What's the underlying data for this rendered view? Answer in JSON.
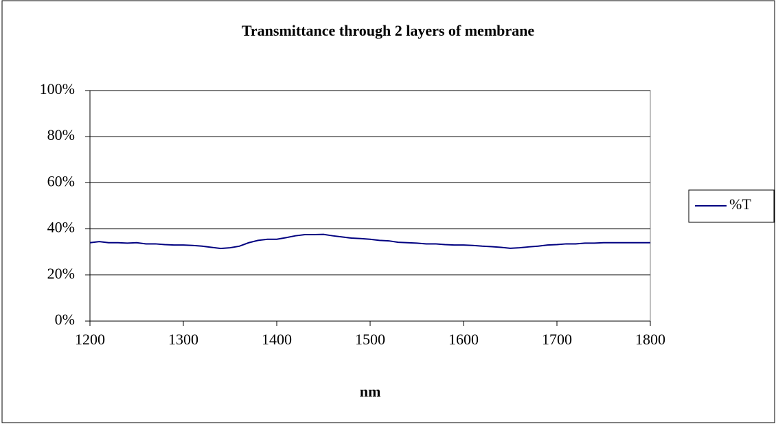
{
  "chart_data": {
    "type": "line",
    "title": "Transmittance through 2 layers of membrane",
    "x_label": "nm",
    "x": [
      1200,
      1210,
      1220,
      1230,
      1240,
      1250,
      1260,
      1270,
      1280,
      1290,
      1300,
      1310,
      1320,
      1330,
      1340,
      1350,
      1360,
      1370,
      1380,
      1390,
      1400,
      1410,
      1420,
      1430,
      1440,
      1450,
      1460,
      1470,
      1480,
      1490,
      1500,
      1510,
      1520,
      1530,
      1540,
      1550,
      1560,
      1570,
      1580,
      1590,
      1600,
      1610,
      1620,
      1630,
      1640,
      1650,
      1660,
      1670,
      1680,
      1690,
      1700,
      1710,
      1720,
      1730,
      1740,
      1750,
      1760,
      1770,
      1780,
      1790,
      1800
    ],
    "series": [
      {
        "name": "%T",
        "color": "#000080",
        "values": [
          34,
          34.5,
          34,
          34,
          33.8,
          34,
          33.5,
          33.5,
          33.2,
          33,
          33,
          32.8,
          32.5,
          32,
          31.5,
          31.8,
          32.5,
          34,
          35,
          35.5,
          35.5,
          36.2,
          37,
          37.5,
          37.5,
          37.6,
          37,
          36.5,
          36,
          35.8,
          35.5,
          35,
          34.8,
          34.2,
          34,
          33.8,
          33.5,
          33.5,
          33.2,
          33,
          33,
          32.8,
          32.5,
          32.3,
          32,
          31.6,
          31.8,
          32.2,
          32.5,
          33,
          33.2,
          33.5,
          33.5,
          33.8,
          33.8,
          34,
          34,
          34,
          34,
          34,
          34
        ]
      }
    ],
    "xlim": [
      1200,
      1800
    ],
    "xticks": [
      1200,
      1300,
      1400,
      1500,
      1600,
      1700,
      1800
    ],
    "ylim": [
      0,
      100
    ],
    "yticks": [
      {
        "value": 0,
        "label": "0%"
      },
      {
        "value": 20,
        "label": "20%"
      },
      {
        "value": 40,
        "label": "40%"
      },
      {
        "value": 60,
        "label": "60%"
      },
      {
        "value": 80,
        "label": "80%"
      },
      {
        "value": 100,
        "label": "100%"
      }
    ],
    "grid": true,
    "legend": "right"
  }
}
